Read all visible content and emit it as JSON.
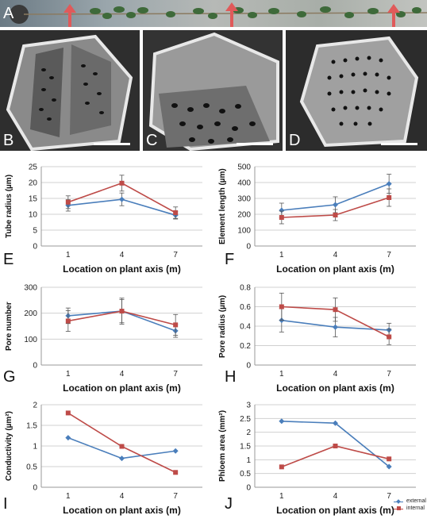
{
  "panels": {
    "A": "A",
    "B": "B",
    "C": "C",
    "D": "D",
    "E": "E",
    "F": "F",
    "G": "G",
    "H": "H",
    "I": "I",
    "J": "J"
  },
  "colors": {
    "external": "#4a7ebb",
    "internal": "#be4b48",
    "arrow": "#e05a5a"
  },
  "legend": {
    "external": "external",
    "internal": "internal"
  },
  "chart_data": [
    {
      "id": "E",
      "type": "line",
      "categories": [
        "1",
        "4",
        "7"
      ],
      "xlabel": "Location on plant axis (m)",
      "ylabel": "Tube radius (µm)",
      "ylim": [
        0,
        25
      ],
      "yticks": [
        0,
        5,
        10,
        15,
        20,
        25
      ],
      "series": [
        {
          "values": [
            12.8,
            14.7,
            9.7
          ],
          "err": [
            1.8,
            2.0,
            1.2
          ]
        },
        {
          "values": [
            13.8,
            19.8,
            10.5
          ],
          "err": [
            2.0,
            2.5,
            1.8
          ]
        }
      ]
    },
    {
      "id": "F",
      "type": "line",
      "categories": [
        "1",
        "4",
        "7"
      ],
      "xlabel": "Location on plant axis (m)",
      "ylabel": "Element length (µm)",
      "ylim": [
        0,
        500
      ],
      "yticks": [
        0,
        100,
        200,
        300,
        400,
        500
      ],
      "series": [
        {
          "values": [
            225,
            260,
            392
          ],
          "err": [
            45,
            50,
            60
          ]
        },
        {
          "values": [
            180,
            195,
            305
          ],
          "err": [
            40,
            35,
            55
          ]
        }
      ]
    },
    {
      "id": "G",
      "type": "line",
      "categories": [
        "1",
        "4",
        "7"
      ],
      "xlabel": "Location on plant axis (m)",
      "ylabel": "Pore number",
      "ylim": [
        0,
        300
      ],
      "yticks": [
        0,
        100,
        200,
        300
      ],
      "series": [
        {
          "values": [
            190,
            208,
            132
          ],
          "err": [
            30,
            45,
            25
          ]
        },
        {
          "values": [
            170,
            208,
            155
          ],
          "err": [
            40,
            50,
            40
          ]
        }
      ]
    },
    {
      "id": "H",
      "type": "line",
      "categories": [
        "1",
        "4",
        "7"
      ],
      "xlabel": "Location on plant axis (m)",
      "ylabel": "Pore radius (µm)",
      "ylim": [
        0,
        0.8
      ],
      "yticks": [
        0,
        0.2,
        0.4,
        0.6,
        0.8
      ],
      "series": [
        {
          "values": [
            0.46,
            0.39,
            0.36
          ],
          "err": [
            0.12,
            0.1,
            0.07
          ]
        },
        {
          "values": [
            0.6,
            0.57,
            0.29
          ],
          "err": [
            0.14,
            0.12,
            0.08
          ]
        }
      ]
    },
    {
      "id": "I",
      "type": "line",
      "categories": [
        "1",
        "4",
        "7"
      ],
      "xlabel": "Location on plant axis (m)",
      "ylabel": "Conductivity (µm²)",
      "ylim": [
        0,
        2
      ],
      "yticks": [
        0,
        0.5,
        1,
        1.5,
        2
      ],
      "series": [
        {
          "values": [
            1.2,
            0.7,
            0.88
          ]
        },
        {
          "values": [
            1.8,
            0.99,
            0.36
          ]
        }
      ]
    },
    {
      "id": "J",
      "type": "line",
      "categories": [
        "1",
        "4",
        "7"
      ],
      "xlabel": "Location on plant axis (m)",
      "ylabel": "Phloem area (mm²)",
      "ylim": [
        0,
        3
      ],
      "yticks": [
        0,
        0.5,
        1,
        1.5,
        2,
        2.5,
        3
      ],
      "series": [
        {
          "name": "external",
          "values": [
            2.4,
            2.33,
            0.75
          ]
        },
        {
          "name": "internal",
          "values": [
            0.74,
            1.5,
            1.03
          ]
        }
      ]
    }
  ]
}
